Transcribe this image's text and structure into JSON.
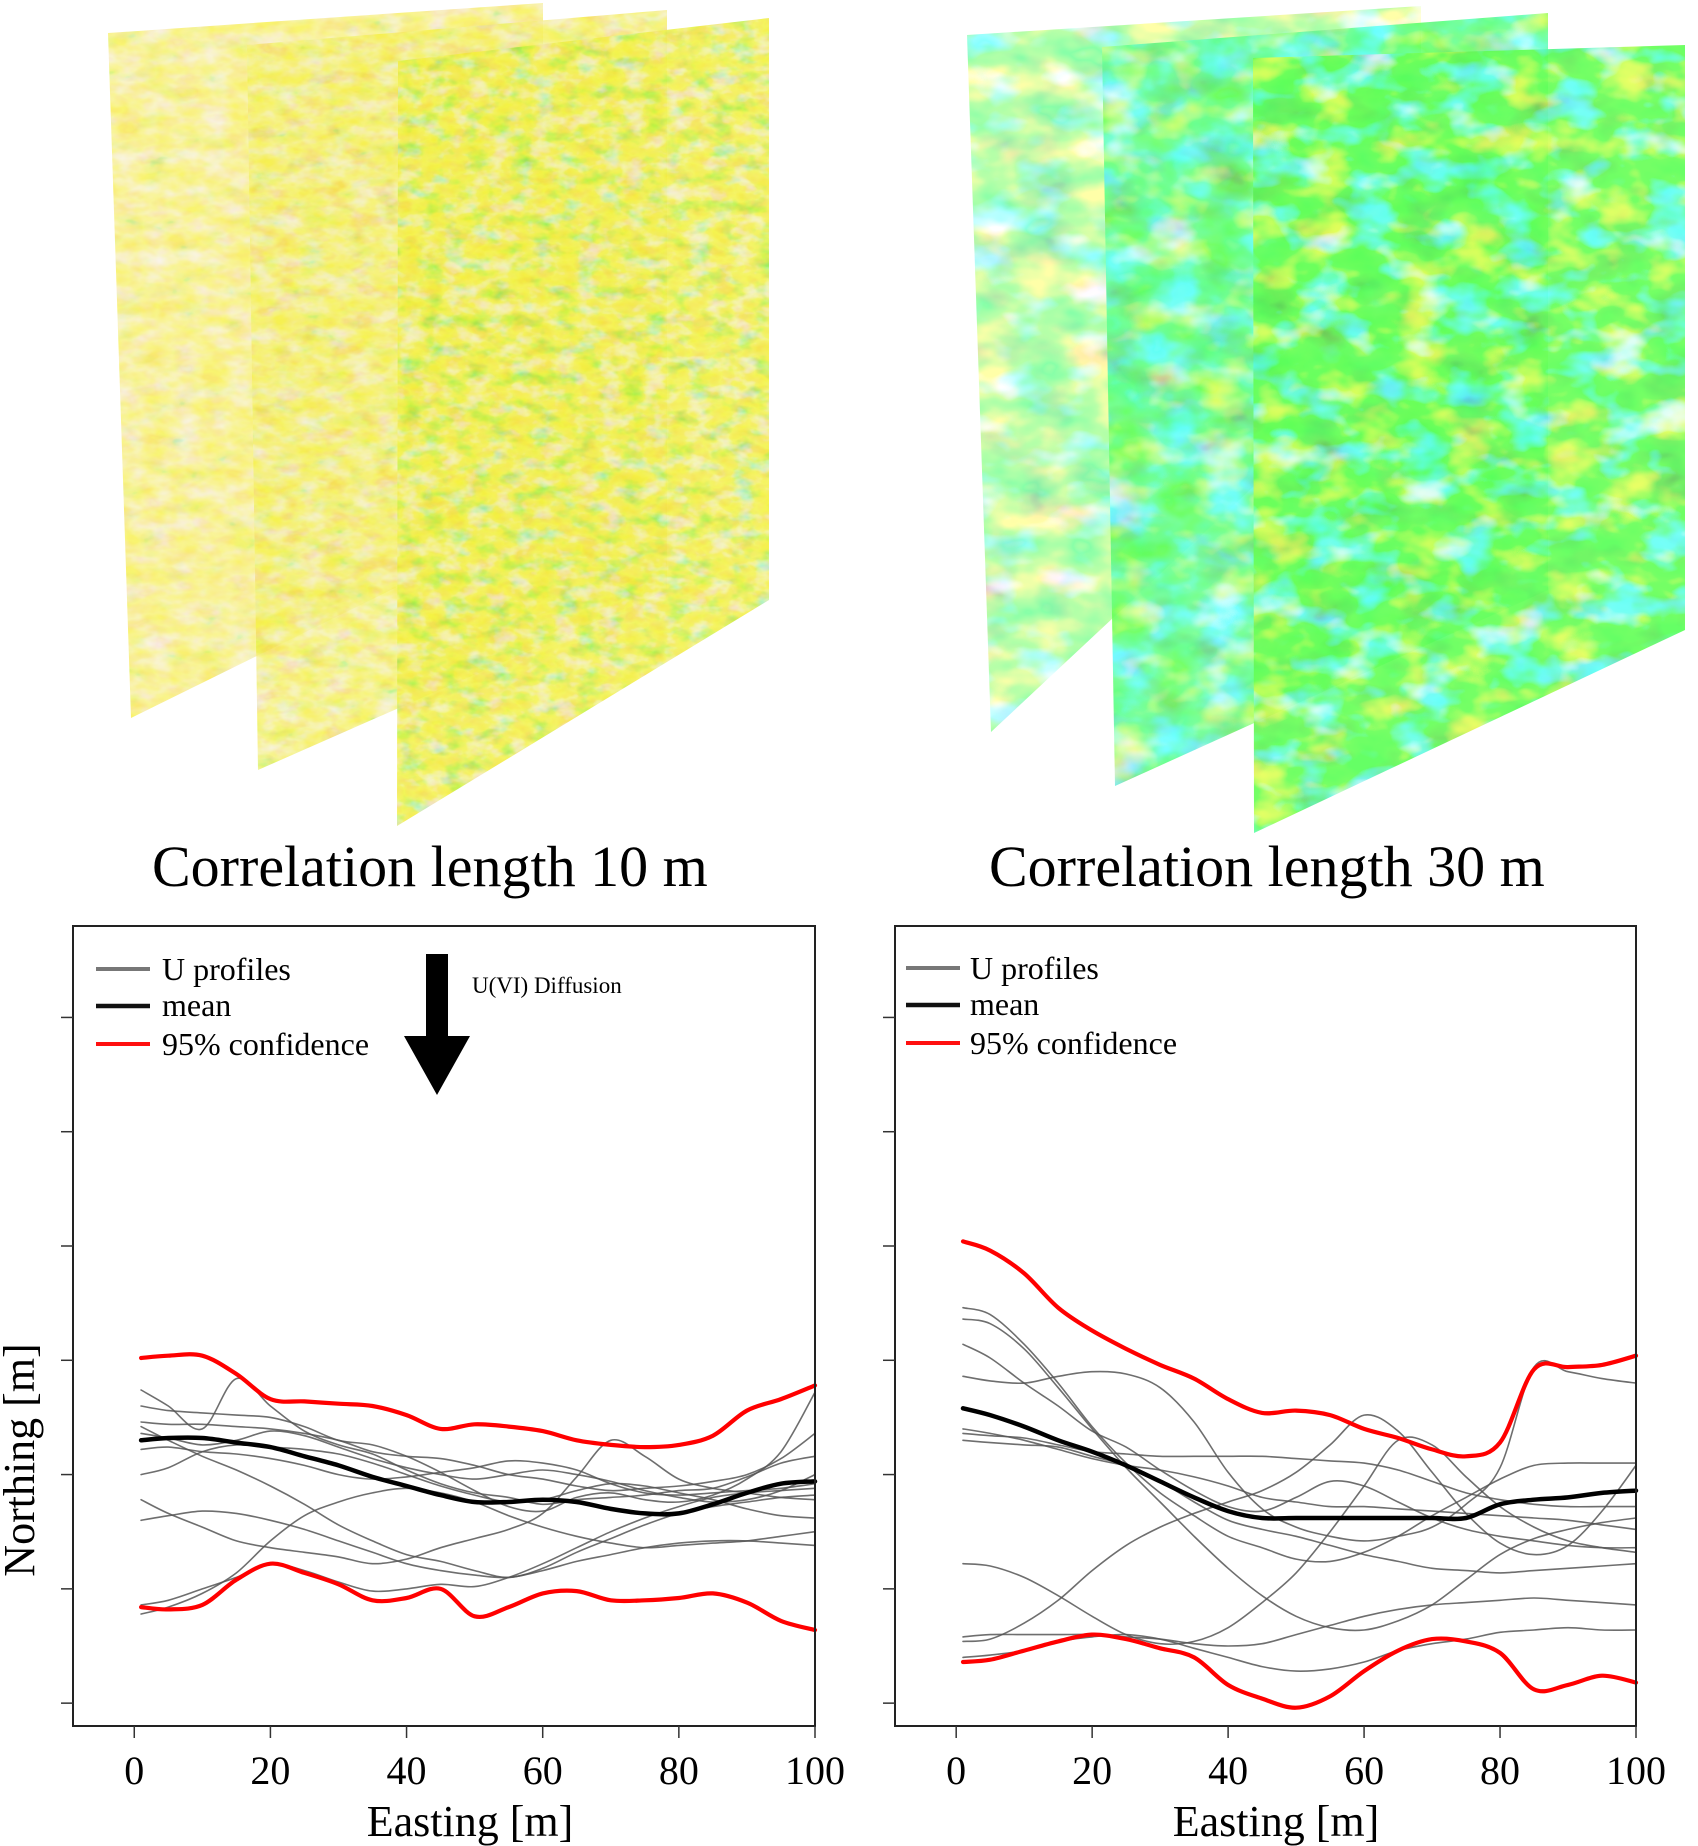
{
  "figure": {
    "panels_top": [
      {
        "caption": "Correlation length 10 m",
        "colormap": "green-yellow-tan",
        "layers": 3
      },
      {
        "caption": "Correlation length 30 m",
        "colormap": "blue-cyan-green-yellow",
        "layers": 3
      }
    ]
  },
  "chart_data": [
    {
      "type": "line",
      "title": "",
      "xlabel": "Easting [m]",
      "ylabel": "Northing [m]",
      "xlim": [
        -9,
        100
      ],
      "ylim": [
        0,
        7
      ],
      "xticks": [
        0,
        20,
        40,
        60,
        80,
        100
      ],
      "yticks": [
        0.2,
        1.2,
        2.2,
        3.2,
        4.2,
        5.2,
        6.2
      ],
      "ytick_labels_shown": false,
      "grid": false,
      "legend": {
        "placement": "top-left",
        "entries": [
          {
            "label": "U profiles",
            "color": "#666666"
          },
          {
            "label": "mean",
            "color": "#000000"
          },
          {
            "label": "95% confidence",
            "color": "#ff0000"
          }
        ]
      },
      "annotation": {
        "text": "U(VI) Diffusion",
        "arrow": "down",
        "x": 45
      },
      "x": [
        1,
        5,
        10,
        15,
        20,
        25,
        30,
        35,
        40,
        45,
        50,
        55,
        60,
        65,
        70,
        75,
        80,
        85,
        90,
        95,
        100
      ],
      "series": [
        {
          "name": "mean",
          "color": "#000000",
          "values": [
            2.5,
            2.52,
            2.52,
            2.48,
            2.44,
            2.36,
            2.28,
            2.18,
            2.1,
            2.02,
            1.96,
            1.96,
            1.98,
            1.96,
            1.9,
            1.86,
            1.86,
            1.94,
            2.04,
            2.12,
            2.14
          ]
        },
        {
          "name": "95% confidence upper",
          "color": "#ff0000",
          "values": [
            3.22,
            3.24,
            3.24,
            3.08,
            2.86,
            2.84,
            2.82,
            2.8,
            2.72,
            2.6,
            2.64,
            2.62,
            2.58,
            2.5,
            2.46,
            2.44,
            2.46,
            2.54,
            2.76,
            2.86,
            2.98
          ]
        },
        {
          "name": "95% confidence lower",
          "color": "#ff0000",
          "values": [
            1.04,
            1.02,
            1.06,
            1.28,
            1.42,
            1.34,
            1.24,
            1.1,
            1.12,
            1.2,
            0.96,
            1.04,
            1.16,
            1.18,
            1.1,
            1.1,
            1.12,
            1.16,
            1.08,
            0.92,
            0.84
          ]
        },
        {
          "name": "U profile 1",
          "color": "#666666",
          "values": [
            2.94,
            2.8,
            2.6,
            3.04,
            2.8,
            2.58,
            2.46,
            2.38,
            2.24,
            2.12,
            2.04,
            2.0,
            1.94,
            1.98,
            2.0,
            2.02,
            2.06,
            2.08,
            2.18,
            2.3,
            2.36
          ]
        },
        {
          "name": "U profile 2",
          "color": "#666666",
          "values": [
            2.8,
            2.76,
            2.74,
            2.72,
            2.7,
            2.62,
            2.5,
            2.46,
            2.36,
            2.22,
            2.06,
            1.92,
            1.88,
            2.0,
            2.04,
            1.98,
            1.96,
            2.02,
            2.16,
            2.4,
            2.92
          ]
        },
        {
          "name": "U profile 3",
          "color": "#666666",
          "values": [
            2.66,
            2.64,
            2.64,
            2.62,
            2.6,
            2.56,
            2.5,
            2.4,
            2.36,
            2.34,
            2.28,
            2.2,
            2.16,
            2.1,
            2.06,
            2.08,
            2.1,
            2.14,
            2.2,
            2.34,
            2.56
          ]
        },
        {
          "name": "U profile 4",
          "color": "#666666",
          "values": [
            2.56,
            2.52,
            2.46,
            2.5,
            2.58,
            2.54,
            2.44,
            2.34,
            2.26,
            2.2,
            2.16,
            2.2,
            2.24,
            2.2,
            2.14,
            2.06,
            2.0,
            1.96,
            1.98,
            2.06,
            2.2
          ]
        },
        {
          "name": "U profile 5",
          "color": "#666666",
          "values": [
            2.42,
            2.44,
            2.4,
            2.38,
            2.34,
            2.28,
            2.2,
            2.16,
            2.18,
            2.22,
            2.26,
            2.32,
            2.3,
            2.24,
            2.12,
            2.04,
            2.02,
            2.04,
            2.06,
            2.08,
            2.12
          ]
        },
        {
          "name": "U profile 6",
          "color": "#666666",
          "values": [
            2.2,
            2.26,
            2.4,
            2.46,
            2.44,
            2.42,
            2.38,
            2.3,
            2.2,
            2.1,
            2.02,
            1.96,
            1.98,
            2.06,
            2.12,
            2.1,
            2.04,
            1.98,
            1.9,
            1.84,
            1.82
          ]
        },
        {
          "name": "U profile 7",
          "color": "#666666",
          "values": [
            2.62,
            2.5,
            2.36,
            2.24,
            2.1,
            1.94,
            1.76,
            1.62,
            1.5,
            1.44,
            1.36,
            1.3,
            1.38,
            1.52,
            1.64,
            1.76,
            1.86,
            1.92,
            1.96,
            2.0,
            2.02
          ]
        },
        {
          "name": "U profile 8",
          "color": "#666666",
          "values": [
            1.98,
            1.86,
            1.74,
            1.62,
            1.56,
            1.52,
            1.48,
            1.42,
            1.46,
            1.56,
            1.64,
            1.72,
            1.86,
            2.18,
            2.5,
            2.36,
            2.16,
            2.08,
            2.04,
            2.0,
            1.98
          ]
        },
        {
          "name": "U profile 9",
          "color": "#666666",
          "values": [
            0.98,
            1.04,
            1.16,
            1.34,
            1.62,
            1.84,
            1.96,
            2.04,
            2.08,
            2.04,
            1.96,
            1.84,
            1.74,
            1.66,
            1.6,
            1.56,
            1.58,
            1.6,
            1.62,
            1.66,
            1.7
          ]
        },
        {
          "name": "U profile 10",
          "color": "#666666",
          "values": [
            1.8,
            1.84,
            1.88,
            1.86,
            1.8,
            1.72,
            1.62,
            1.52,
            1.42,
            1.36,
            1.32,
            1.3,
            1.36,
            1.44,
            1.5,
            1.56,
            1.6,
            1.62,
            1.62,
            1.6,
            1.58
          ]
        },
        {
          "name": "U profile 11",
          "color": "#666666",
          "values": [
            1.06,
            1.1,
            1.2,
            1.3,
            1.42,
            1.36,
            1.26,
            1.18,
            1.2,
            1.24,
            1.22,
            1.3,
            1.42,
            1.56,
            1.7,
            1.82,
            1.92,
            2.0,
            2.04,
            2.06,
            2.08
          ]
        }
      ]
    },
    {
      "type": "line",
      "title": "",
      "xlabel": "Easting [m]",
      "ylabel": "",
      "xlim": [
        -9,
        100
      ],
      "ylim": [
        0,
        7
      ],
      "xticks": [
        0,
        20,
        40,
        60,
        80,
        100
      ],
      "yticks": [
        0.2,
        1.2,
        2.2,
        3.2,
        4.2,
        5.2,
        6.2
      ],
      "ytick_labels_shown": false,
      "grid": false,
      "legend": {
        "placement": "top-left",
        "entries": [
          {
            "label": "U profiles",
            "color": "#666666"
          },
          {
            "label": "mean",
            "color": "#000000"
          },
          {
            "label": "95% confidence",
            "color": "#ff0000"
          }
        ]
      },
      "x": [
        1,
        5,
        10,
        15,
        20,
        25,
        30,
        35,
        40,
        45,
        50,
        55,
        60,
        65,
        70,
        75,
        80,
        85,
        90,
        95,
        100
      ],
      "series": [
        {
          "name": "mean",
          "color": "#000000",
          "values": [
            2.78,
            2.72,
            2.62,
            2.5,
            2.4,
            2.28,
            2.14,
            2.0,
            1.88,
            1.82,
            1.82,
            1.82,
            1.82,
            1.82,
            1.82,
            1.82,
            1.94,
            1.98,
            2.0,
            2.04,
            2.06
          ]
        },
        {
          "name": "95% confidence upper",
          "color": "#ff0000",
          "values": [
            4.24,
            4.16,
            3.96,
            3.66,
            3.46,
            3.3,
            3.16,
            3.04,
            2.86,
            2.74,
            2.76,
            2.72,
            2.6,
            2.52,
            2.42,
            2.36,
            2.48,
            3.12,
            3.14,
            3.16,
            3.24
          ]
        },
        {
          "name": "95% confidence lower",
          "color": "#ff0000",
          "values": [
            0.56,
            0.58,
            0.66,
            0.74,
            0.8,
            0.76,
            0.68,
            0.6,
            0.36,
            0.24,
            0.16,
            0.26,
            0.48,
            0.66,
            0.76,
            0.74,
            0.64,
            0.32,
            0.36,
            0.44,
            0.38
          ]
        },
        {
          "name": "U profile 1",
          "color": "#666666",
          "values": [
            3.66,
            3.6,
            3.34,
            3.0,
            2.62,
            2.3,
            2.04,
            1.84,
            1.66,
            1.56,
            1.46,
            1.44,
            1.52,
            1.66,
            1.84,
            2.0,
            2.16,
            2.28,
            2.3,
            2.3,
            2.3
          ]
        },
        {
          "name": "U profile 2",
          "color": "#666666",
          "values": [
            3.56,
            3.52,
            3.3,
            2.96,
            2.6,
            2.26,
            1.96,
            1.66,
            1.38,
            1.14,
            0.96,
            0.86,
            0.84,
            0.92,
            1.06,
            1.28,
            1.5,
            1.64,
            1.72,
            1.78,
            1.82
          ]
        },
        {
          "name": "U profile 3",
          "color": "#666666",
          "values": [
            3.34,
            3.22,
            3.0,
            2.8,
            2.58,
            2.44,
            2.24,
            2.06,
            1.92,
            1.88,
            2.0,
            2.14,
            2.1,
            1.96,
            1.82,
            1.72,
            1.66,
            1.62,
            1.58,
            1.56,
            1.56
          ]
        },
        {
          "name": "U profile 4",
          "color": "#666666",
          "values": [
            3.06,
            3.02,
            3.0,
            3.06,
            3.1,
            3.08,
            2.96,
            2.66,
            2.22,
            1.9,
            1.74,
            1.66,
            1.62,
            1.66,
            1.74,
            1.94,
            2.26,
            3.14,
            3.1,
            3.04,
            3.0
          ]
        },
        {
          "name": "U profile 5",
          "color": "#666666",
          "values": [
            2.56,
            2.54,
            2.52,
            2.46,
            2.4,
            2.38,
            2.36,
            2.36,
            2.36,
            2.36,
            2.34,
            2.32,
            2.3,
            2.24,
            2.14,
            2.04,
            1.98,
            1.94,
            1.92,
            1.92,
            1.92
          ]
        },
        {
          "name": "U profile 6",
          "color": "#666666",
          "values": [
            2.5,
            2.48,
            2.46,
            2.44,
            2.36,
            2.28,
            2.14,
            1.96,
            1.8,
            1.72,
            1.66,
            1.58,
            1.5,
            1.44,
            1.38,
            1.36,
            1.34,
            1.36,
            1.38,
            1.4,
            1.42
          ]
        },
        {
          "name": "U profile 7",
          "color": "#666666",
          "values": [
            2.6,
            2.56,
            2.5,
            2.42,
            2.34,
            2.28,
            2.24,
            2.18,
            2.1,
            2.0,
            1.96,
            1.92,
            1.92,
            1.9,
            1.88,
            1.86,
            1.84,
            1.82,
            1.8,
            1.76,
            1.72
          ]
        },
        {
          "name": "U profile 8",
          "color": "#666666",
          "values": [
            1.42,
            1.4,
            1.3,
            1.14,
            0.96,
            0.8,
            0.72,
            0.74,
            0.86,
            1.08,
            1.34,
            1.7,
            2.1,
            2.5,
            2.46,
            2.18,
            1.92,
            1.74,
            1.62,
            1.56,
            1.52
          ]
        },
        {
          "name": "U profile 9",
          "color": "#666666",
          "values": [
            0.74,
            0.76,
            0.9,
            1.1,
            1.36,
            1.58,
            1.74,
            1.86,
            1.96,
            2.06,
            2.22,
            2.46,
            2.72,
            2.58,
            2.22,
            1.86,
            1.6,
            1.5,
            1.58,
            1.88,
            2.28
          ]
        },
        {
          "name": "U profile 10",
          "color": "#666666",
          "values": [
            0.78,
            0.8,
            0.8,
            0.8,
            0.8,
            0.78,
            0.76,
            0.72,
            0.7,
            0.72,
            0.8,
            0.88,
            0.96,
            1.02,
            1.06,
            1.08,
            1.1,
            1.12,
            1.1,
            1.08,
            1.06
          ]
        },
        {
          "name": "U profile 11",
          "color": "#666666",
          "values": [
            0.6,
            0.62,
            0.66,
            0.74,
            0.78,
            0.8,
            0.76,
            0.68,
            0.6,
            0.52,
            0.48,
            0.5,
            0.56,
            0.66,
            0.72,
            0.76,
            0.82,
            0.84,
            0.86,
            0.84,
            0.84
          ]
        }
      ]
    }
  ]
}
